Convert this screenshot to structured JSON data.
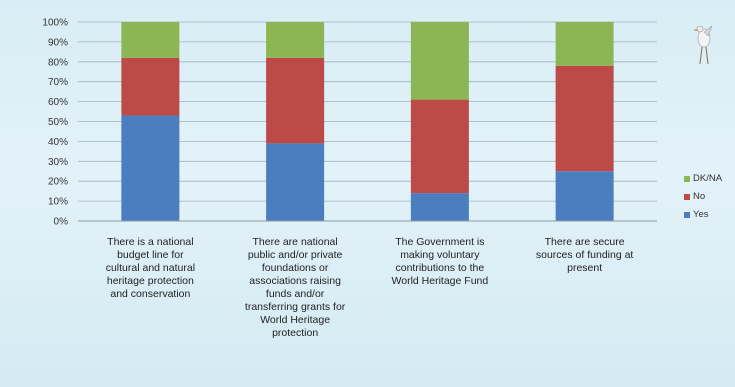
{
  "chart_data": {
    "type": "bar",
    "stacked": true,
    "title": "",
    "xlabel": "",
    "ylabel": "",
    "ylim": [
      0,
      100
    ],
    "yticks": [
      "0%",
      "10%",
      "20%",
      "30%",
      "40%",
      "50%",
      "60%",
      "70%",
      "80%",
      "90%",
      "100%"
    ],
    "categories": [
      "There is a national budget line for cultural and natural heritage protection and conservation",
      "There are national public and/or private foundations or associations raising funds and/or transferring grants for World Heritage protection",
      "The Government is making voluntary contributions to the World Heritage Fund",
      "There are secure sources of funding at present"
    ],
    "category_lines": [
      [
        "There is a national",
        "budget line for",
        "cultural and natural",
        "heritage protection",
        "and conservation"
      ],
      [
        "There are national",
        "public and/or private",
        "foundations or",
        "associations raising",
        "funds and/or",
        "transferring grants for",
        "World Heritage",
        "protection"
      ],
      [
        "The Government is",
        "making voluntary",
        "contributions to the",
        "World Heritage Fund"
      ],
      [
        "There are secure",
        "sources of funding at",
        "present"
      ]
    ],
    "series": [
      {
        "name": "Yes",
        "color": "#4a7ebf",
        "values": [
          53,
          39,
          14,
          25
        ]
      },
      {
        "name": "No",
        "color": "#bc4a47",
        "values": [
          29,
          43,
          47,
          53
        ]
      },
      {
        "name": "DK/NA",
        "color": "#8cb553",
        "values": [
          18,
          18,
          39,
          22
        ]
      }
    ],
    "legend": [
      "DK/NA",
      "No",
      "Yes"
    ],
    "legend_position": "right",
    "grid": true
  }
}
